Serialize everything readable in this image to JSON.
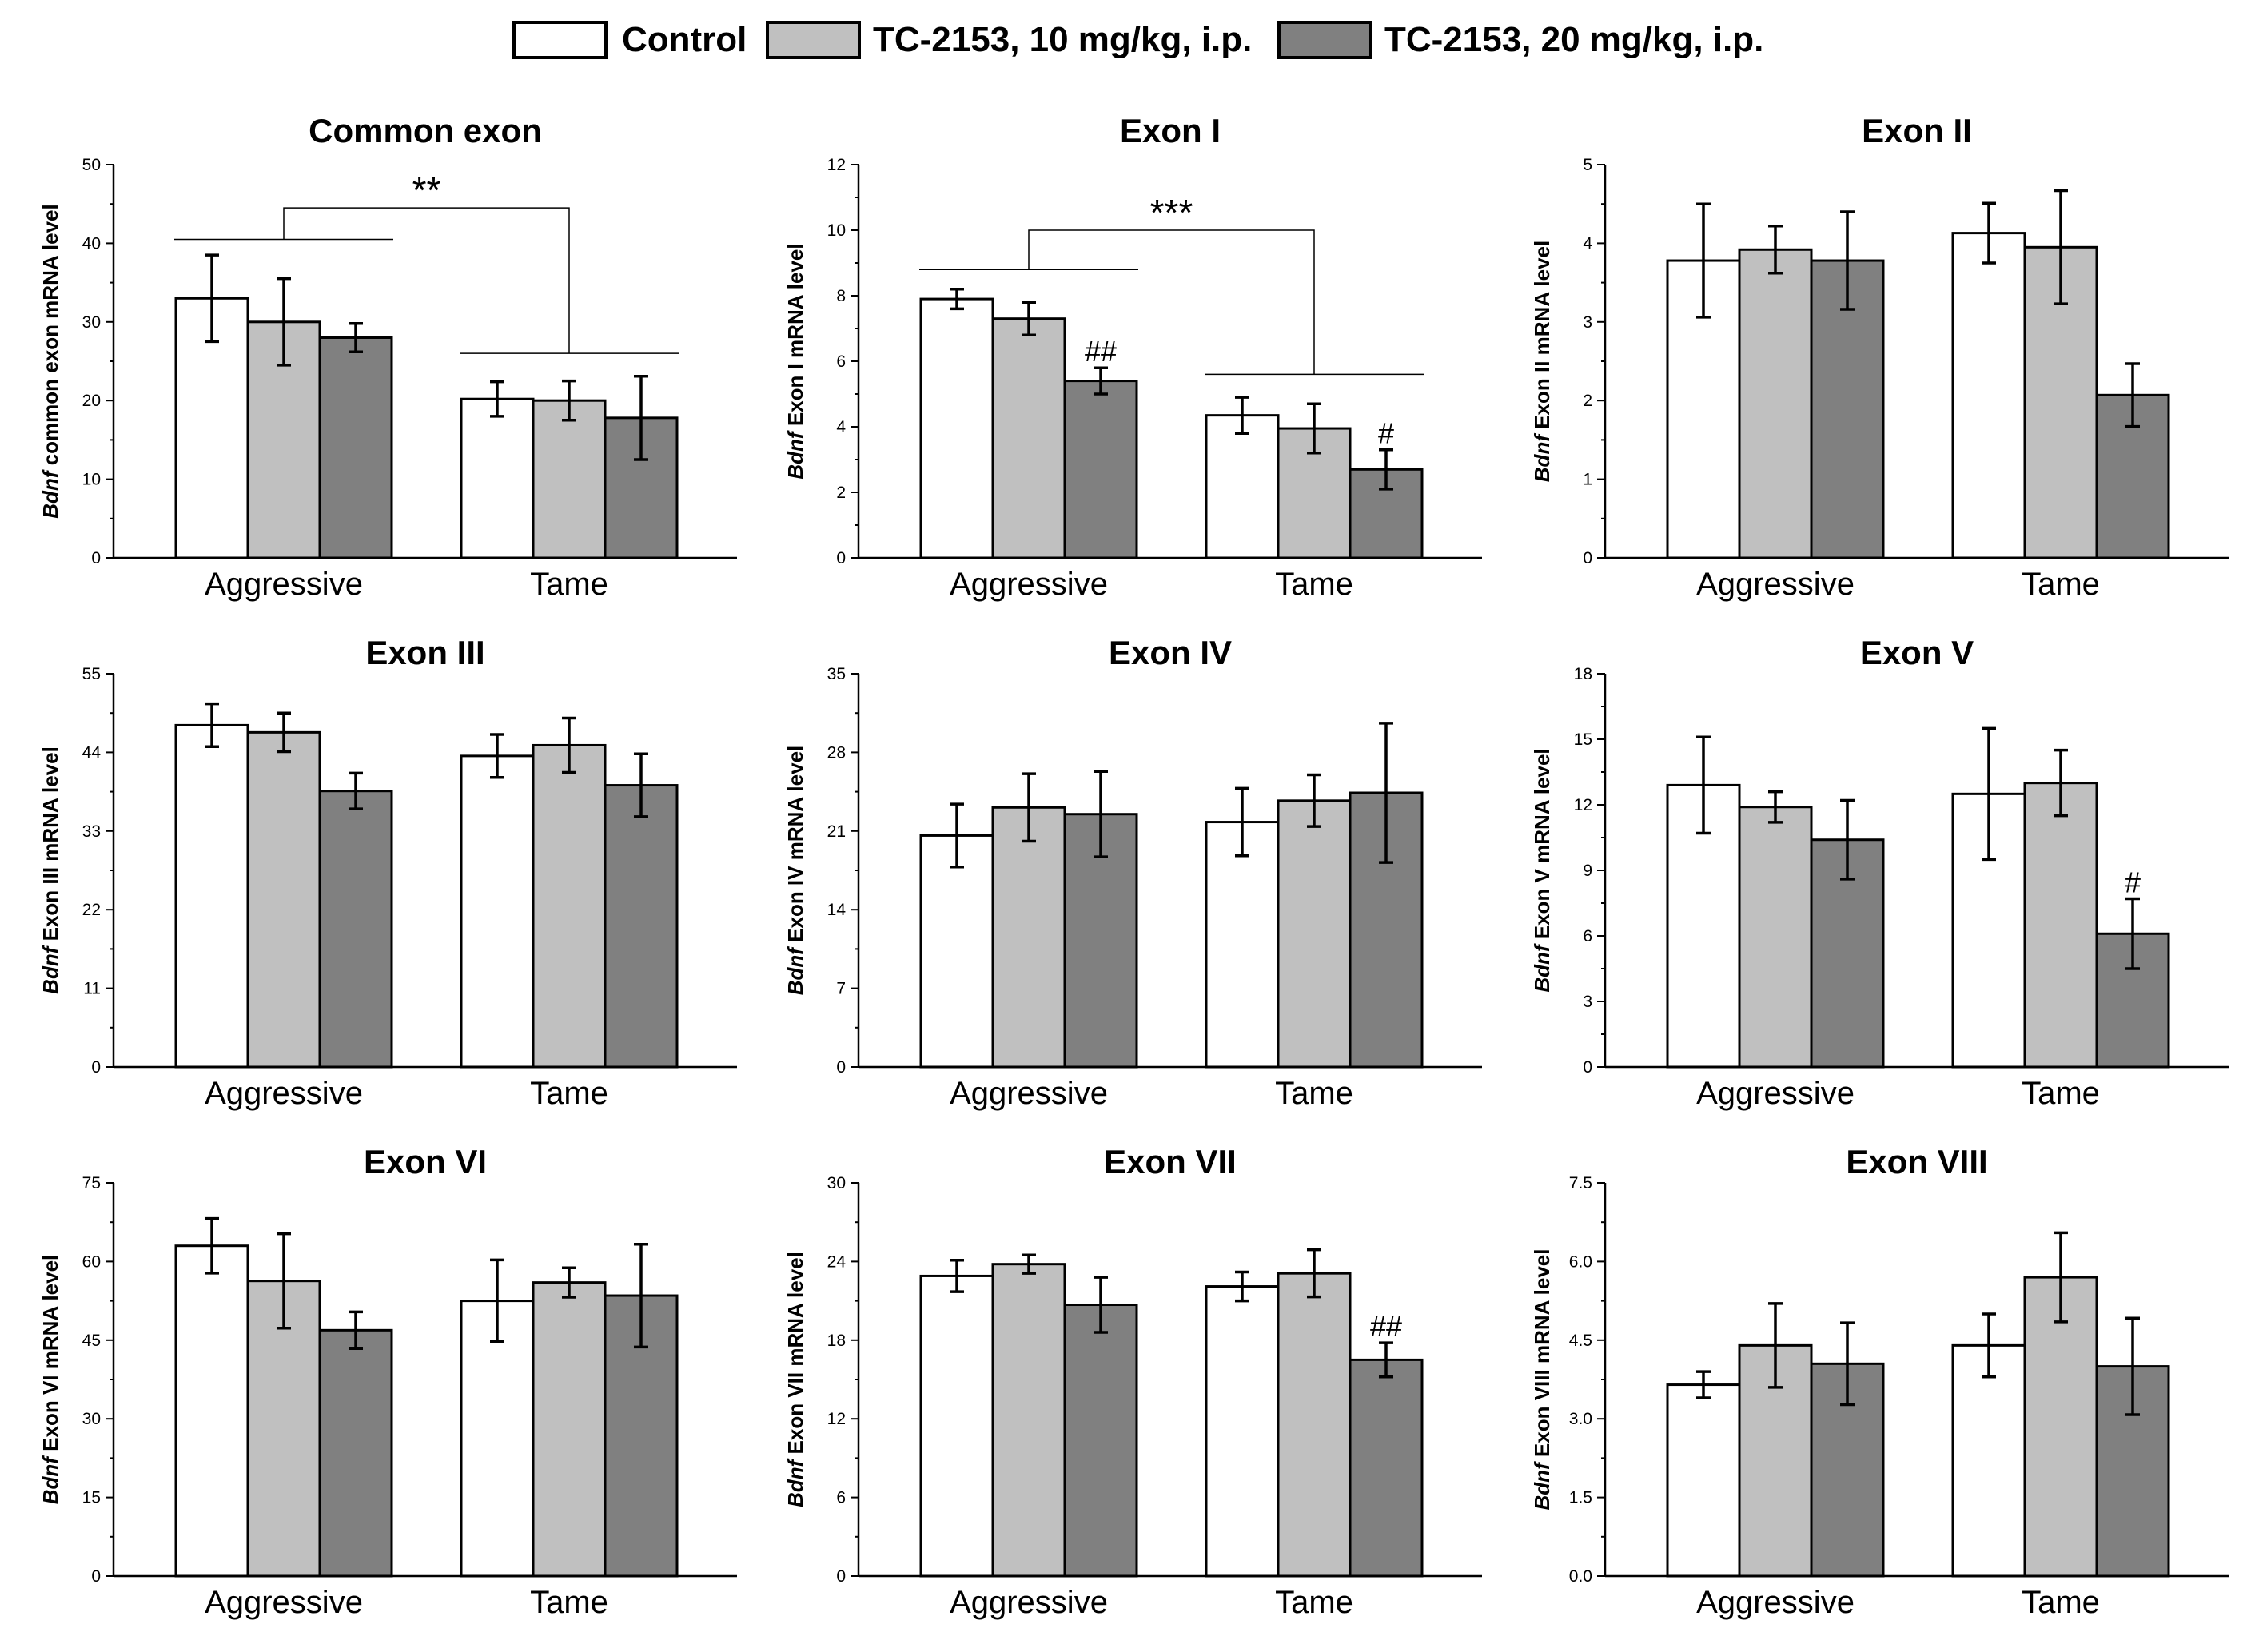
{
  "legend": {
    "items": [
      {
        "label": "Control",
        "color": "#ffffff"
      },
      {
        "label": "TC-2153, 10 mg/kg, i.p.",
        "color": "#c0c0c0"
      },
      {
        "label": "TC-2153, 20 mg/kg, i.p.",
        "color": "#808080"
      }
    ]
  },
  "chart_data": [
    {
      "type": "bar",
      "title": "Common exon",
      "ylabel_italic": "Bdnf",
      "ylabel_rest": " common exon mRNA level",
      "categories": [
        "Aggressive",
        "Tame"
      ],
      "ylim": [
        0,
        50
      ],
      "yticks": [
        "0",
        "10",
        "20",
        "30",
        "40",
        "50"
      ],
      "series": [
        {
          "name": "Control",
          "values": [
            33,
            20.2
          ],
          "errors": [
            5.5,
            2.2
          ]
        },
        {
          "name": "TC-2153, 10 mg/kg, i.p.",
          "values": [
            30,
            20
          ],
          "errors": [
            5.5,
            2.5
          ]
        },
        {
          "name": "TC-2153, 20 mg/kg, i.p.",
          "values": [
            28,
            17.8
          ],
          "errors": [
            1.8,
            5.3
          ]
        }
      ],
      "group_comparison": {
        "label": "**",
        "levels": [
          40.5,
          26
        ],
        "top": 44.5
      },
      "bar_annotations": []
    },
    {
      "type": "bar",
      "title": "Exon I",
      "ylabel_italic": "Bdnf",
      "ylabel_rest": " Exon I mRNA level",
      "categories": [
        "Aggressive",
        "Tame"
      ],
      "ylim": [
        0,
        12
      ],
      "yticks": [
        "0",
        "2",
        "4",
        "6",
        "8",
        "10",
        "12"
      ],
      "series": [
        {
          "name": "Control",
          "values": [
            7.9,
            4.35
          ],
          "errors": [
            0.3,
            0.55
          ]
        },
        {
          "name": "TC-2153, 10 mg/kg, i.p.",
          "values": [
            7.3,
            3.95
          ],
          "errors": [
            0.5,
            0.75
          ]
        },
        {
          "name": "TC-2153, 20 mg/kg, i.p.",
          "values": [
            5.4,
            2.7
          ],
          "errors": [
            0.4,
            0.6
          ]
        }
      ],
      "group_comparison": {
        "label": "***",
        "levels": [
          8.8,
          5.6
        ],
        "top": 10
      },
      "bar_annotations": [
        {
          "group": 0,
          "series": 2,
          "label": "##"
        },
        {
          "group": 1,
          "series": 2,
          "label": "#"
        }
      ]
    },
    {
      "type": "bar",
      "title": "Exon II",
      "ylabel_italic": "Bdnf",
      "ylabel_rest": " Exon II mRNA level",
      "categories": [
        "Aggressive",
        "Tame"
      ],
      "ylim": [
        0,
        5
      ],
      "yticks": [
        "0",
        "1",
        "2",
        "3",
        "4",
        "5"
      ],
      "series": [
        {
          "name": "Control",
          "values": [
            3.78,
            4.13
          ],
          "errors": [
            0.72,
            0.38
          ]
        },
        {
          "name": "TC-2153, 10 mg/kg, i.p.",
          "values": [
            3.92,
            3.95
          ],
          "errors": [
            0.3,
            0.72
          ]
        },
        {
          "name": "TC-2153, 20 mg/kg, i.p.",
          "values": [
            3.78,
            2.07
          ],
          "errors": [
            0.62,
            0.4
          ]
        }
      ],
      "bar_annotations": []
    },
    {
      "type": "bar",
      "title": "Exon III",
      "ylabel_italic": "Bdnf",
      "ylabel_rest": " Exon III mRNA level",
      "categories": [
        "Aggressive",
        "Tame"
      ],
      "ylim": [
        0,
        55
      ],
      "yticks": [
        "0",
        "11",
        "22",
        "33",
        "44",
        "55"
      ],
      "series": [
        {
          "name": "Control",
          "values": [
            47.8,
            43.5
          ],
          "errors": [
            3,
            3
          ]
        },
        {
          "name": "TC-2153, 10 mg/kg, i.p.",
          "values": [
            46.8,
            45
          ],
          "errors": [
            2.7,
            3.8
          ]
        },
        {
          "name": "TC-2153, 20 mg/kg, i.p.",
          "values": [
            38.6,
            39.4
          ],
          "errors": [
            2.5,
            4.4
          ]
        }
      ],
      "bar_annotations": []
    },
    {
      "type": "bar",
      "title": "Exon IV",
      "ylabel_italic": "Bdnf",
      "ylabel_rest": " Exon IV mRNA level",
      "categories": [
        "Aggressive",
        "Tame"
      ],
      "ylim": [
        0,
        35
      ],
      "yticks": [
        "0",
        "7",
        "14",
        "21",
        "28",
        "35"
      ],
      "series": [
        {
          "name": "Control",
          "values": [
            20.6,
            21.8
          ],
          "errors": [
            2.8,
            3
          ]
        },
        {
          "name": "TC-2153, 10 mg/kg, i.p.",
          "values": [
            23.1,
            23.7
          ],
          "errors": [
            3,
            2.3
          ]
        },
        {
          "name": "TC-2153, 20 mg/kg, i.p.",
          "values": [
            22.5,
            24.4
          ],
          "errors": [
            3.8,
            6.2
          ]
        }
      ],
      "bar_annotations": []
    },
    {
      "type": "bar",
      "title": "Exon V",
      "ylabel_italic": "Bdnf",
      "ylabel_rest": " Exon V mRNA level",
      "categories": [
        "Aggressive",
        "Tame"
      ],
      "ylim": [
        0,
        18
      ],
      "yticks": [
        "0",
        "3",
        "6",
        "9",
        "12",
        "15",
        "18"
      ],
      "series": [
        {
          "name": "Control",
          "values": [
            12.9,
            12.5
          ],
          "errors": [
            2.2,
            3
          ]
        },
        {
          "name": "TC-2153, 10 mg/kg, i.p.",
          "values": [
            11.9,
            13
          ],
          "errors": [
            0.7,
            1.5
          ]
        },
        {
          "name": "TC-2153, 20 mg/kg, i.p.",
          "values": [
            10.4,
            6.1
          ],
          "errors": [
            1.8,
            1.6
          ]
        }
      ],
      "bar_annotations": [
        {
          "group": 1,
          "series": 2,
          "label": "#"
        }
      ]
    },
    {
      "type": "bar",
      "title": "Exon VI",
      "ylabel_italic": "Bdnf",
      "ylabel_rest": " Exon VI mRNA level",
      "categories": [
        "Aggressive",
        "Tame"
      ],
      "ylim": [
        0,
        75
      ],
      "yticks": [
        "0",
        "15",
        "30",
        "45",
        "60",
        "75"
      ],
      "series": [
        {
          "name": "Control",
          "values": [
            63,
            52.5
          ],
          "errors": [
            5.2,
            7.8
          ]
        },
        {
          "name": "TC-2153, 10 mg/kg, i.p.",
          "values": [
            56.3,
            56
          ],
          "errors": [
            9,
            2.8
          ]
        },
        {
          "name": "TC-2153, 20 mg/kg, i.p.",
          "values": [
            46.9,
            53.5
          ],
          "errors": [
            3.5,
            9.8
          ]
        }
      ],
      "bar_annotations": []
    },
    {
      "type": "bar",
      "title": "Exon VII",
      "ylabel_italic": "Bdnf",
      "ylabel_rest": " Exon VII mRNA level",
      "categories": [
        "Aggressive",
        "Tame"
      ],
      "ylim": [
        0,
        30
      ],
      "yticks": [
        "0",
        "6",
        "12",
        "18",
        "24",
        "30"
      ],
      "series": [
        {
          "name": "Control",
          "values": [
            22.9,
            22.1
          ],
          "errors": [
            1.2,
            1.1
          ]
        },
        {
          "name": "TC-2153, 10 mg/kg, i.p.",
          "values": [
            23.8,
            23.1
          ],
          "errors": [
            0.7,
            1.8
          ]
        },
        {
          "name": "TC-2153, 20 mg/kg, i.p.",
          "values": [
            20.7,
            16.5
          ],
          "errors": [
            2.1,
            1.3
          ]
        }
      ],
      "bar_annotations": [
        {
          "group": 1,
          "series": 2,
          "label": "##"
        }
      ]
    },
    {
      "type": "bar",
      "title": "Exon VIII",
      "ylabel_italic": "Bdnf",
      "ylabel_rest": " Exon VIII mRNA level",
      "categories": [
        "Aggressive",
        "Tame"
      ],
      "ylim": [
        0,
        7.5
      ],
      "yticks": [
        "0.0",
        "1.5",
        "3.0",
        "4.5",
        "6.0",
        "7.5"
      ],
      "series": [
        {
          "name": "Control",
          "values": [
            3.65,
            4.4
          ],
          "errors": [
            0.25,
            0.6
          ]
        },
        {
          "name": "TC-2153, 10 mg/kg, i.p.",
          "values": [
            4.4,
            5.7
          ],
          "errors": [
            0.8,
            0.85
          ]
        },
        {
          "name": "TC-2153, 20 mg/kg, i.p.",
          "values": [
            4.05,
            4.0
          ],
          "errors": [
            0.78,
            0.92
          ]
        }
      ],
      "bar_annotations": []
    }
  ]
}
